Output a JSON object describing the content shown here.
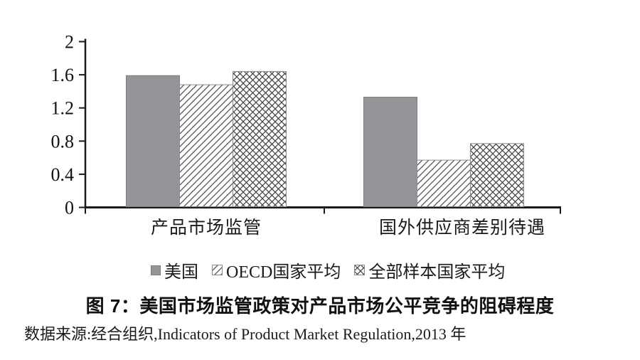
{
  "figure": {
    "title": "图 7：美国市场监管政策对产品市场公平竞争的阻碍程度",
    "source": "数据来源:经合组织,Indicators of Product Market Regulation,2013 年"
  },
  "chart_data": {
    "type": "bar",
    "categories": [
      "产品市场监管",
      "国外供应商差别待遇"
    ],
    "series": [
      {
        "name": "美国",
        "values": [
          1.59,
          1.33
        ],
        "fill": "solid-gray",
        "color": "#939598"
      },
      {
        "name": "OECD国家平均",
        "values": [
          1.48,
          0.57
        ],
        "fill": "diagonal-hatch",
        "color": "#4d4d4d"
      },
      {
        "name": "全部样本国家平均",
        "values": [
          1.64,
          0.77
        ],
        "fill": "cross-hatch",
        "color": "#3f3f3f"
      }
    ],
    "xlabel": "",
    "ylabel": "",
    "ylim": [
      0,
      2
    ],
    "yticks": [
      "0",
      "0.4",
      "0.8",
      "1.2",
      "1.6",
      "2"
    ],
    "grid": false,
    "legend_position": "bottom",
    "axis_color": "#1a1a1a"
  }
}
